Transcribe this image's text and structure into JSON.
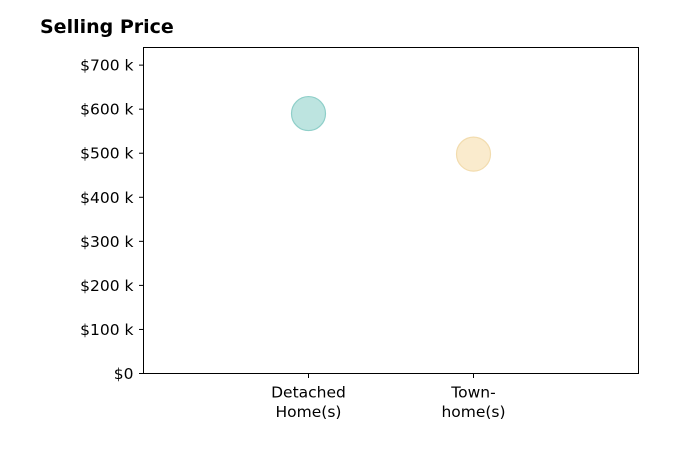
{
  "chart_data": {
    "type": "scatter",
    "title": "Selling Price",
    "xlabel": "",
    "ylabel": "",
    "categories": [
      {
        "lines": [
          "Detached",
          "Home(s)"
        ]
      },
      {
        "lines": [
          "Town-",
          "home(s)"
        ]
      }
    ],
    "values": [
      590000,
      498000
    ],
    "colors": [
      "#b2dfdb",
      "#f9e7c4"
    ],
    "point_edge_colors": [
      "#8fcfc9",
      "#f2dcae"
    ],
    "ylim": [
      0,
      740000
    ],
    "xlim": [
      -1,
      2
    ],
    "y_ticks": [
      {
        "value": 0,
        "label": "$0"
      },
      {
        "value": 100000,
        "label": "$100 k"
      },
      {
        "value": 200000,
        "label": "$200 k"
      },
      {
        "value": 300000,
        "label": "$300 k"
      },
      {
        "value": 400000,
        "label": "$400 k"
      },
      {
        "value": 500000,
        "label": "$500 k"
      },
      {
        "value": 600000,
        "label": "$600 k"
      },
      {
        "value": 700000,
        "label": "$700 k"
      }
    ],
    "grid": false,
    "legend": "none"
  }
}
